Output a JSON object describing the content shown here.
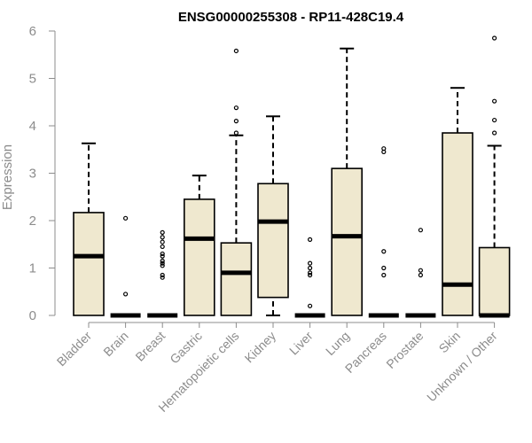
{
  "chart_data": {
    "type": "boxplot",
    "title": "ENSG00000255308 - RP11-428C19.4",
    "xlabel": "",
    "ylabel": "Expression",
    "ylim": [
      0,
      6
    ],
    "yticks": [
      0,
      1,
      2,
      3,
      4,
      5,
      6
    ],
    "categories": [
      "Bladder",
      "Brain",
      "Breast",
      "Gastric",
      "Hematopoietic cells",
      "Kidney",
      "Liver",
      "Lung",
      "Pancreas",
      "Prostate",
      "Skin",
      "Unknown / Other"
    ],
    "boxes": [
      {
        "min": 0,
        "q1": 0,
        "median": 1.25,
        "q3": 2.17,
        "max": 3.63,
        "outliers": []
      },
      {
        "min": 0,
        "q1": 0,
        "median": 0,
        "q3": 0,
        "max": 0,
        "outliers": [
          0.45,
          2.05
        ]
      },
      {
        "min": 0,
        "q1": 0,
        "median": 0,
        "q3": 0,
        "max": 0,
        "outliers": [
          0.8,
          0.85,
          1.05,
          1.1,
          1.15,
          1.25,
          1.3,
          1.45,
          1.55,
          1.65,
          1.75
        ]
      },
      {
        "min": 0,
        "q1": 0,
        "median": 1.62,
        "q3": 2.45,
        "max": 2.95,
        "outliers": []
      },
      {
        "min": 0,
        "q1": 0,
        "median": 0.9,
        "q3": 1.53,
        "max": 3.8,
        "outliers": [
          3.85,
          4.1,
          4.38,
          5.58
        ]
      },
      {
        "min": 0,
        "q1": 0.38,
        "median": 1.98,
        "q3": 2.78,
        "max": 4.2,
        "outliers": []
      },
      {
        "min": 0,
        "q1": 0,
        "median": 0,
        "q3": 0,
        "max": 0,
        "outliers": [
          0.2,
          0.85,
          0.9,
          1.0,
          1.1,
          1.6
        ]
      },
      {
        "min": 0,
        "q1": 0,
        "median": 1.67,
        "q3": 3.1,
        "max": 5.63,
        "outliers": []
      },
      {
        "min": 0,
        "q1": 0,
        "median": 0,
        "q3": 0,
        "max": 0,
        "outliers": [
          0.85,
          1.0,
          1.35,
          3.45,
          3.52
        ]
      },
      {
        "min": 0,
        "q1": 0,
        "median": 0,
        "q3": 0,
        "max": 0,
        "outliers": [
          0.85,
          0.95,
          1.8
        ]
      },
      {
        "min": 0,
        "q1": 0,
        "median": 0.65,
        "q3": 3.85,
        "max": 4.8,
        "outliers": []
      },
      {
        "min": 0,
        "q1": 0,
        "median": 0,
        "q3": 1.43,
        "max": 3.58,
        "outliers": [
          3.85,
          4.12,
          4.52,
          5.85
        ]
      }
    ],
    "box_fill": "#efe8cf",
    "axis_color": "#8c8c8c",
    "grid": false,
    "legend": false
  }
}
